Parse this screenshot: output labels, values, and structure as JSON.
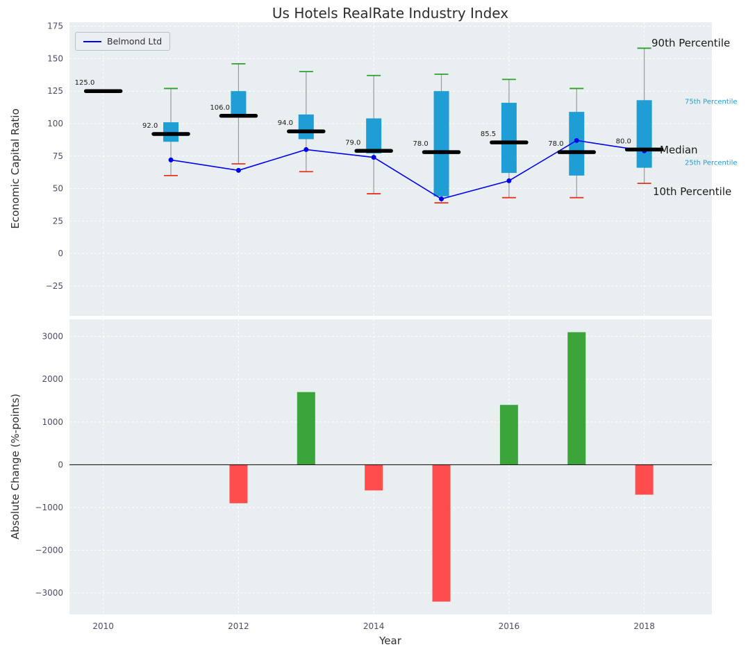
{
  "title": "Us Hotels RealRate Industry Index",
  "legend": {
    "label": "Belmond Ltd"
  },
  "annotations": {
    "p90": "90th Percentile",
    "p75": "75th Percentile",
    "median": "Median",
    "p25": "25th Percentile",
    "p10": "10th Percentile"
  },
  "colors": {
    "panel_bg": "#e9eef0",
    "grid": "#ffffff",
    "box": "#1f9ed5",
    "median": "#000000",
    "whisker": "#9a9a9a",
    "cap_90": "#2ca02c",
    "cap_10": "#e8321f",
    "line": "#0000ee",
    "bar_pos": "#3ba43b",
    "bar_neg": "#ff4d4d",
    "tick": "#4b4b68",
    "label": "#2e2e2e"
  },
  "chart_data": [
    {
      "type": "boxplot+line",
      "title": "Us Hotels RealRate Industry Index",
      "xlabel": "Year",
      "ylabel": "Economic Capital Ratio",
      "xlim": [
        2009.5,
        2019.0
      ],
      "ylim": [
        -48,
        178
      ],
      "yticks": [
        175,
        150,
        125,
        100,
        75,
        50,
        25,
        0,
        -25
      ],
      "xticks": [
        2010,
        2012,
        2014,
        2016,
        2018
      ],
      "legend_position": "upper left",
      "grid": true,
      "boxes": [
        {
          "year": 2010,
          "p10": 125,
          "q1": 125,
          "median": 125,
          "q3": 125,
          "p90": 125,
          "label": "125.0"
        },
        {
          "year": 2011,
          "p10": 60,
          "q1": 86,
          "median": 92,
          "q3": 101,
          "p90": 127,
          "label": "92.0"
        },
        {
          "year": 2012,
          "p10": 69,
          "q1": 105,
          "median": 106,
          "q3": 125,
          "p90": 146,
          "label": "106.0"
        },
        {
          "year": 2013,
          "p10": 63,
          "q1": 88,
          "median": 94,
          "q3": 107,
          "p90": 140,
          "label": "94.0"
        },
        {
          "year": 2014,
          "p10": 46,
          "q1": 77,
          "median": 79,
          "q3": 104,
          "p90": 137,
          "label": "79.0"
        },
        {
          "year": 2015,
          "p10": 39,
          "q1": 44,
          "median": 78,
          "q3": 125,
          "p90": 138,
          "label": "78.0"
        },
        {
          "year": 2016,
          "p10": 43,
          "q1": 62,
          "median": 85.5,
          "q3": 116,
          "p90": 134,
          "label": "85.5"
        },
        {
          "year": 2017,
          "p10": 43,
          "q1": 60,
          "median": 78,
          "q3": 109,
          "p90": 127,
          "label": "78.0"
        },
        {
          "year": 2018,
          "p10": 54,
          "q1": 66,
          "median": 80,
          "q3": 118,
          "p90": 158,
          "label": "80.0"
        }
      ],
      "series": [
        {
          "name": "Belmond Ltd",
          "x": [
            2011,
            2012,
            2013,
            2014,
            2015,
            2016,
            2017,
            2018
          ],
          "y": [
            72,
            64,
            80,
            74,
            42,
            56,
            87,
            79
          ]
        }
      ]
    },
    {
      "type": "bar",
      "xlabel": "Year",
      "ylabel": "Absolute Change (%-points)",
      "xlim": [
        2009.5,
        2019.0
      ],
      "ylim": [
        -3500,
        3400
      ],
      "yticks": [
        3000,
        2000,
        1000,
        0,
        -1000,
        -2000,
        -3000
      ],
      "xticks": [
        2010,
        2012,
        2014,
        2016,
        2018
      ],
      "grid": true,
      "years": [
        2012,
        2013,
        2014,
        2015,
        2016,
        2017,
        2018
      ],
      "values": [
        -900,
        1700,
        -600,
        -3200,
        1400,
        3100,
        -700
      ]
    }
  ]
}
